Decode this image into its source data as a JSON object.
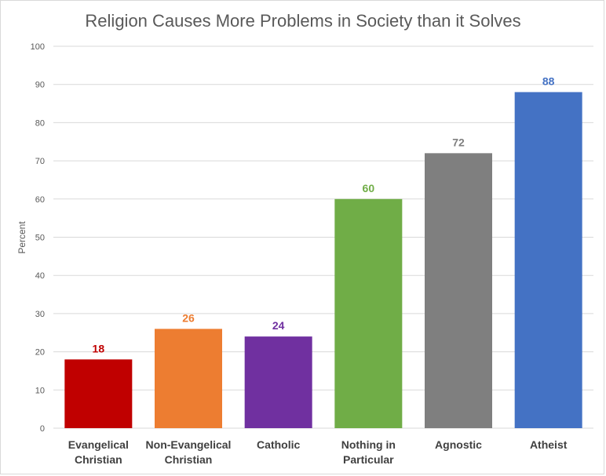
{
  "chart_data": {
    "type": "bar",
    "title": "Religion Causes More Problems in Society than it Solves",
    "ylabel": "Percent",
    "xlabel": "",
    "ylim": [
      0,
      100
    ],
    "yticks": [
      0,
      10,
      20,
      30,
      40,
      50,
      60,
      70,
      80,
      90,
      100
    ],
    "grid": true,
    "categories": [
      [
        "Evangelical",
        "Christian"
      ],
      [
        "Non-Evangelical",
        "Christian"
      ],
      [
        "Catholic"
      ],
      [
        "Nothing in",
        "Particular"
      ],
      [
        "Agnostic"
      ],
      [
        "Atheist"
      ]
    ],
    "values": [
      18,
      26,
      24,
      60,
      72,
      88
    ],
    "colors": [
      "#c00000",
      "#ed7d31",
      "#7030a0",
      "#70ad47",
      "#7f7f7f",
      "#4472c4"
    ],
    "label_colors": [
      "#c00000",
      "#ed7d31",
      "#7030a0",
      "#70ad47",
      "#7f7f7f",
      "#4472c4"
    ]
  }
}
